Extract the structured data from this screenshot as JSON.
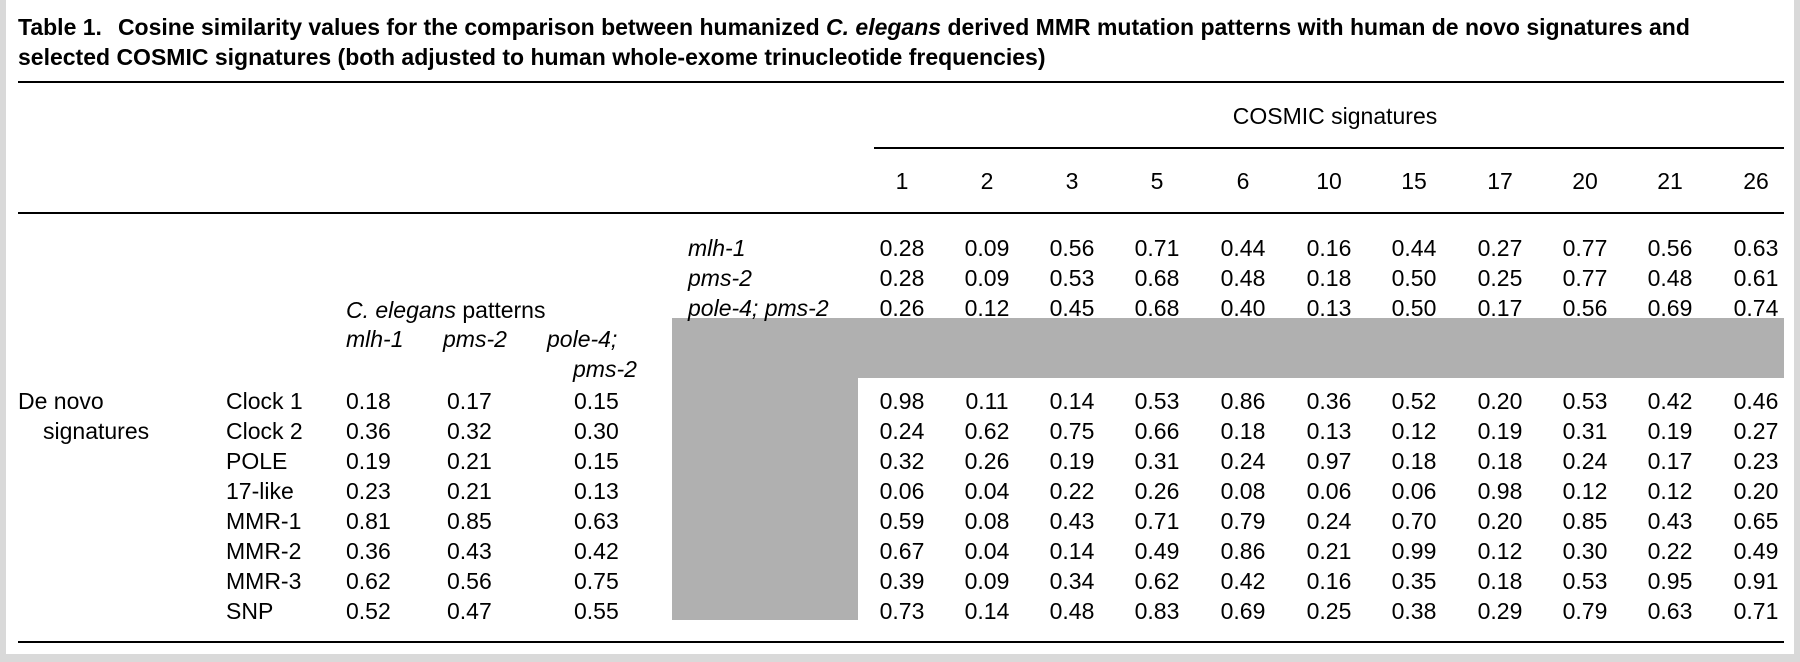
{
  "caption": {
    "label": "Table 1.",
    "text_part1": "Cosine similarity values for the comparison between humanized ",
    "text_italic": "C. elegans",
    "text_part2": " derived MMR mutation patterns with human de novo signatures and selected COSMIC signatures (both adjusted to human whole-exome trinucleotide frequencies)"
  },
  "cosmic_header": "COSMIC signatures",
  "cosmic_columns": [
    "1",
    "2",
    "3",
    "5",
    "6",
    "10",
    "15",
    "17",
    "20",
    "21",
    "26"
  ],
  "celegans_header": {
    "italic": "C. elegans",
    "rest": " patterns"
  },
  "celegans_columns": [
    "mlh-1",
    "pms-2",
    "pole-4;",
    "pms-2"
  ],
  "denovo_label": [
    "De novo",
    "signatures"
  ],
  "celegans_vs_cosmic": [
    {
      "pattern": "mlh-1",
      "values": [
        "0.28",
        "0.09",
        "0.56",
        "0.71",
        "0.44",
        "0.16",
        "0.44",
        "0.27",
        "0.77",
        "0.56",
        "0.63"
      ]
    },
    {
      "pattern": "pms-2",
      "values": [
        "0.28",
        "0.09",
        "0.53",
        "0.68",
        "0.48",
        "0.18",
        "0.50",
        "0.25",
        "0.77",
        "0.48",
        "0.61"
      ]
    },
    {
      "pattern": "pole-4; pms-2",
      "values": [
        "0.26",
        "0.12",
        "0.45",
        "0.68",
        "0.40",
        "0.13",
        "0.50",
        "0.17",
        "0.56",
        "0.69",
        "0.74"
      ]
    }
  ],
  "denovo_rows": [
    {
      "name": "Clock 1",
      "celegans": [
        "0.18",
        "0.17",
        "0.15"
      ],
      "cosmic": [
        "0.98",
        "0.11",
        "0.14",
        "0.53",
        "0.86",
        "0.36",
        "0.52",
        "0.20",
        "0.53",
        "0.42",
        "0.46"
      ]
    },
    {
      "name": "Clock 2",
      "celegans": [
        "0.36",
        "0.32",
        "0.30"
      ],
      "cosmic": [
        "0.24",
        "0.62",
        "0.75",
        "0.66",
        "0.18",
        "0.13",
        "0.12",
        "0.19",
        "0.31",
        "0.19",
        "0.27"
      ]
    },
    {
      "name": "POLE",
      "celegans": [
        "0.19",
        "0.21",
        "0.15"
      ],
      "cosmic": [
        "0.32",
        "0.26",
        "0.19",
        "0.31",
        "0.24",
        "0.97",
        "0.18",
        "0.18",
        "0.24",
        "0.17",
        "0.23"
      ]
    },
    {
      "name": "17-like",
      "celegans": [
        "0.23",
        "0.21",
        "0.13"
      ],
      "cosmic": [
        "0.06",
        "0.04",
        "0.22",
        "0.26",
        "0.08",
        "0.06",
        "0.06",
        "0.98",
        "0.12",
        "0.12",
        "0.20"
      ]
    },
    {
      "name": "MMR-1",
      "celegans": [
        "0.81",
        "0.85",
        "0.63"
      ],
      "cosmic": [
        "0.59",
        "0.08",
        "0.43",
        "0.71",
        "0.79",
        "0.24",
        "0.70",
        "0.20",
        "0.85",
        "0.43",
        "0.65"
      ]
    },
    {
      "name": "MMR-2",
      "celegans": [
        "0.36",
        "0.43",
        "0.42"
      ],
      "cosmic": [
        "0.67",
        "0.04",
        "0.14",
        "0.49",
        "0.86",
        "0.21",
        "0.99",
        "0.12",
        "0.30",
        "0.22",
        "0.49"
      ]
    },
    {
      "name": "MMR-3",
      "celegans": [
        "0.62",
        "0.56",
        "0.75"
      ],
      "cosmic": [
        "0.39",
        "0.09",
        "0.34",
        "0.62",
        "0.42",
        "0.16",
        "0.35",
        "0.18",
        "0.53",
        "0.95",
        "0.91"
      ]
    },
    {
      "name": "SNP",
      "celegans": [
        "0.52",
        "0.47",
        "0.55"
      ],
      "cosmic": [
        "0.73",
        "0.14",
        "0.48",
        "0.83",
        "0.69",
        "0.25",
        "0.38",
        "0.29",
        "0.79",
        "0.63",
        "0.71"
      ]
    }
  ],
  "colors": {
    "shade": "#b0b0b0",
    "edge": "#d9d9d9",
    "text": "#000000"
  }
}
